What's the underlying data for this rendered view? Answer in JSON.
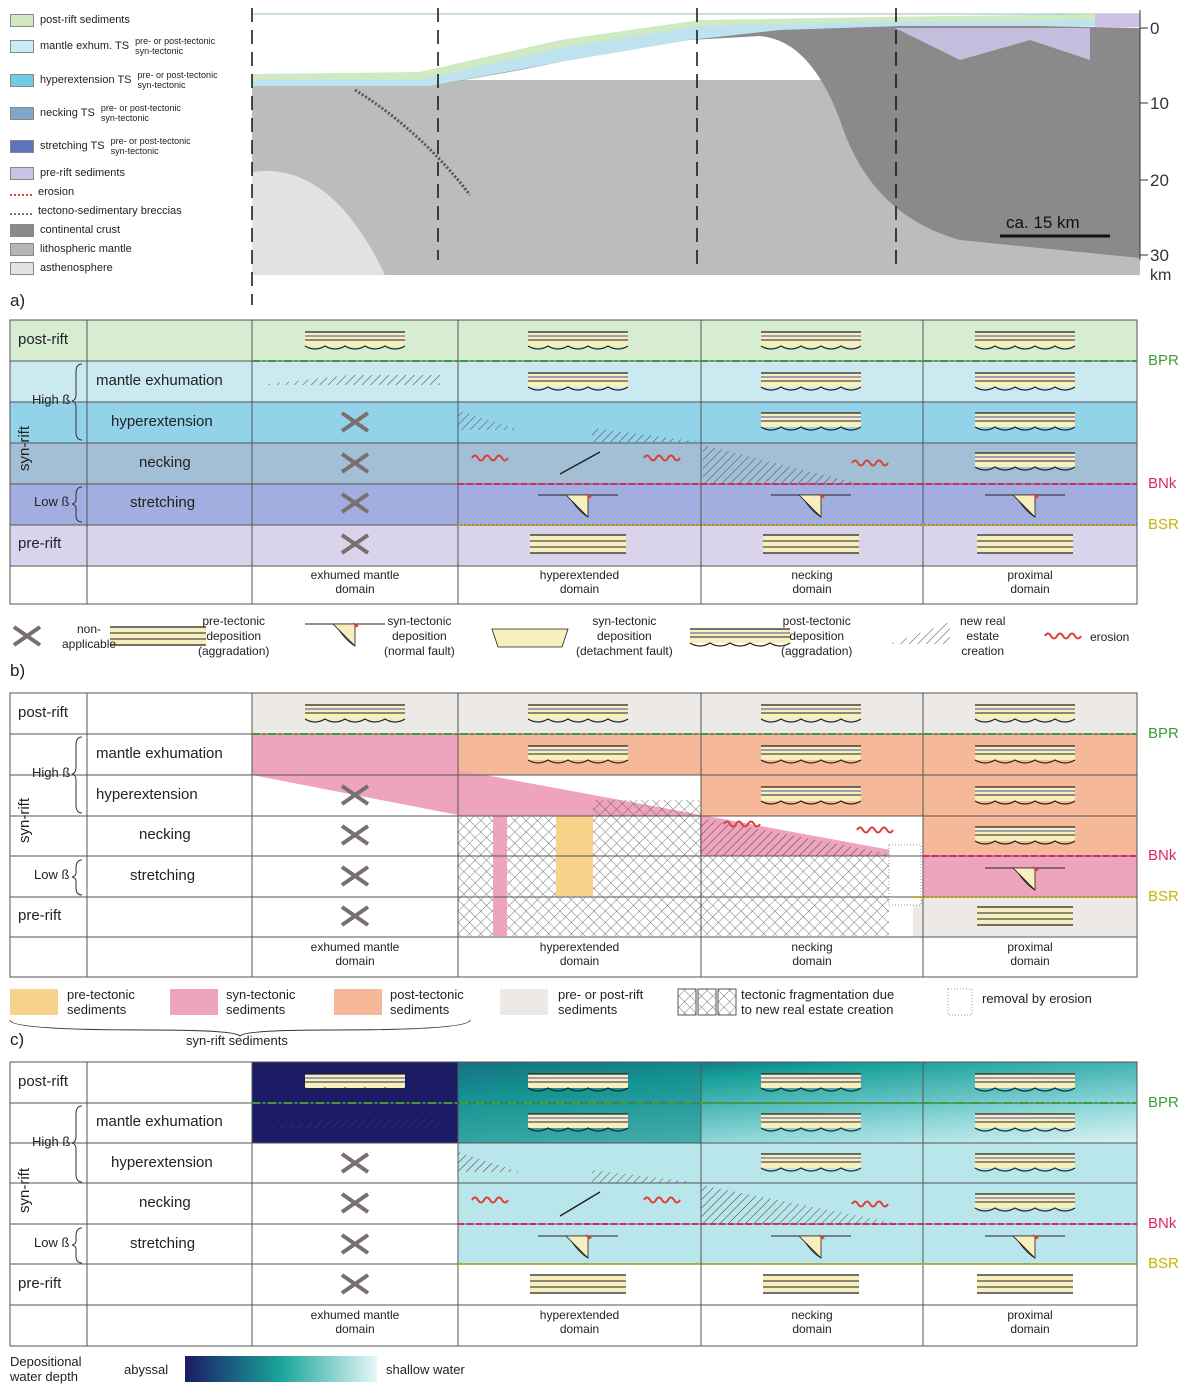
{
  "legend_top": [
    {
      "label": "post-rift sediments",
      "color": "#cfe9c3"
    },
    {
      "label": "mantle exhum. TS",
      "sub": [
        "pre- or post-tectonic",
        "syn-tectonic"
      ],
      "color": "#c9ebf3"
    },
    {
      "label": "hyperextension TS",
      "sub": [
        "pre- or post-tectonic",
        "syn-tectonic"
      ],
      "color": "#6fcbe6"
    },
    {
      "label": "necking TS",
      "sub": [
        "pre- or post-tectonic",
        "syn-tectonic"
      ],
      "color": "#7ea7c9"
    },
    {
      "label": "stretching TS",
      "sub": [
        "pre- or post-tectonic",
        "syn-tectonic"
      ],
      "color": "#5b74bd"
    },
    {
      "label": "pre-rift sediments",
      "color": "#cbc2e6"
    },
    {
      "label": "erosion",
      "color": "#d9413a"
    },
    {
      "label": "tectono-sedimentary breccias",
      "color": "#999999"
    },
    {
      "label": "continental crust",
      "color": "#8a8a8a"
    },
    {
      "label": "lithospheric mantle",
      "color": "#b6b6b6"
    },
    {
      "label": "asthenosphere",
      "color": "#e2e2e2"
    }
  ],
  "section": {
    "depth_ticks": [
      "0",
      "10",
      "20",
      "30"
    ],
    "depth_unit": "km",
    "scale_label": "ca. 15 km"
  },
  "panels": [
    {
      "letter": "a)"
    },
    {
      "letter": "b)"
    },
    {
      "letter": "c)"
    }
  ],
  "rows": [
    "post-rift",
    "mantle exhumation",
    "hyperextension",
    "necking",
    "stretching",
    "pre-rift"
  ],
  "syn_rift": "syn-rift",
  "high_beta": "High ß",
  "low_beta": "Low ß",
  "domains": [
    {
      "l1": "exhumed mantle",
      "l2": "domain"
    },
    {
      "l1": "hyperextended",
      "l2": "domain"
    },
    {
      "l1": "necking",
      "l2": "domain"
    },
    {
      "l1": "proximal",
      "l2": "domain"
    }
  ],
  "boundaries": {
    "bpr": {
      "label": "BPR",
      "color": "#3aa035"
    },
    "bnk": {
      "label": "BNk",
      "color": "#d8256b"
    },
    "bsr": {
      "label": "BSR",
      "color": "#c9b300"
    }
  },
  "legend_a": {
    "na": [
      "non-",
      "applicable"
    ],
    "pre": [
      "pre-tectonic",
      "deposition",
      "(aggradation)"
    ],
    "syn_normal": [
      "syn-tectonic",
      "deposition",
      "(normal fault)"
    ],
    "syn_detach": [
      "syn-tectonic",
      "deposition",
      "(detachment fault)"
    ],
    "post": [
      "post-tectonic",
      "deposition",
      "(aggradation)"
    ],
    "real_estate": [
      "new real",
      "estate",
      "creation"
    ],
    "erosion": "erosion"
  },
  "legend_b": {
    "pre": [
      "pre-tectonic",
      "sediments"
    ],
    "syn": [
      "syn-tectonic",
      "sediments"
    ],
    "post": [
      "post-tectonic",
      "sediments"
    ],
    "prepost": [
      "pre- or post-rift",
      "sediments"
    ],
    "frag": [
      "tectonic fragmentation due",
      "to new real estate creation"
    ],
    "removal": "removal by erosion",
    "brace": "syn-rift sediments",
    "colors": {
      "pre": "#f6d28a",
      "syn": "#eea4bd",
      "post": "#f5b898",
      "prepost": "#ece9e6"
    }
  },
  "legend_c": {
    "title": [
      "Depositional",
      "water depth"
    ],
    "abyssal": "abyssal",
    "shallow": "shallow water",
    "colors": {
      "abyssal": "#1b1b66",
      "mid": "#1aa59a",
      "shallow": "#e6f6f7"
    }
  }
}
